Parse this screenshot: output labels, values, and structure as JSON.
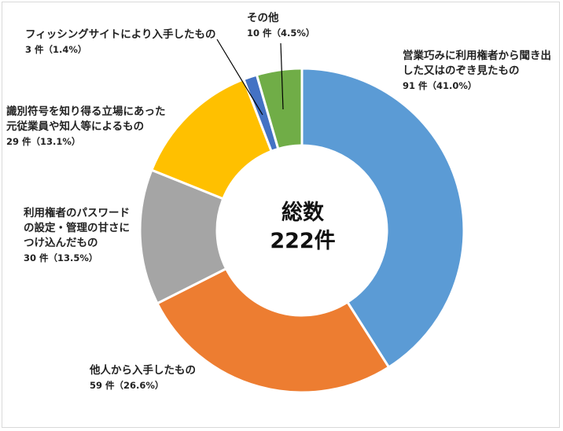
{
  "chart_data": {
    "type": "pie",
    "center_label": {
      "line1": "総数",
      "line2": "222件"
    },
    "slices": [
      {
        "label": "営業巧みに利用権者から聞き出した又はのぞき見たもの",
        "count_text": "91 件（41.0%）",
        "value": 91,
        "percent": 41.0,
        "color": "#5b9bd5"
      },
      {
        "label": "他人から入手したもの",
        "count_text": "59 件（26.6%）",
        "value": 59,
        "percent": 26.6,
        "color": "#ed7d31"
      },
      {
        "label": "利用権者のパスワードの設定・管理の甘さにつけ込んだもの",
        "count_text": "30 件（13.5%）",
        "value": 30,
        "percent": 13.5,
        "color": "#a5a5a5"
      },
      {
        "label": "識別符号を知り得る立場にあった元従業員や知人等によるもの",
        "count_text": "29 件（13.1%）",
        "value": 29,
        "percent": 13.1,
        "color": "#ffc000"
      },
      {
        "label": "フィッシングサイトにより入手したもの",
        "count_text": "3 件（1.4%）",
        "value": 3,
        "percent": 1.4,
        "color": "#4472c4"
      },
      {
        "label": "その他",
        "count_text": "10 件（4.5%）",
        "value": 10,
        "percent": 4.5,
        "color": "#70ad47"
      }
    ]
  }
}
